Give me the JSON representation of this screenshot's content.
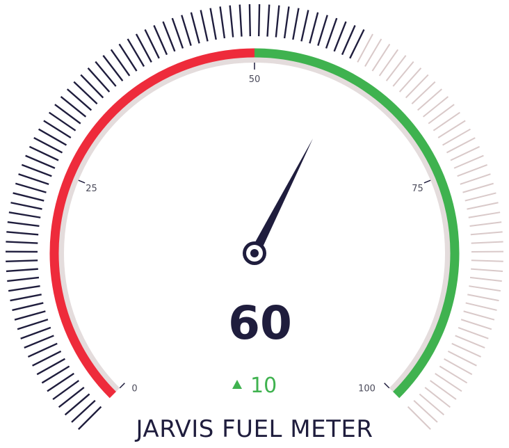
{
  "chart_data": {
    "type": "gauge",
    "title": "JARVIS FUEL METER",
    "min": 0,
    "max": 100,
    "value": 60,
    "value_label": "60",
    "delta": "10",
    "delta_direction": "up",
    "tick_labels": [
      {
        "value": 0,
        "label": "0"
      },
      {
        "value": 25,
        "label": "25"
      },
      {
        "value": 50,
        "label": "50"
      },
      {
        "value": 75,
        "label": "75"
      },
      {
        "value": 100,
        "label": "100"
      }
    ],
    "bands": [
      {
        "from": 0,
        "to": 50,
        "color": "#ee2b3b"
      },
      {
        "from": 50,
        "to": 100,
        "color": "#3fb24f"
      }
    ],
    "outer_tick_progress": 60
  },
  "colors": {
    "dark": "#1f1d3d",
    "red": "#ee2b3b",
    "green": "#3fb24f",
    "track": "#e4dcdc",
    "tick_inactive": "#d9c9c9",
    "label_gray": "#4a4a5a"
  }
}
